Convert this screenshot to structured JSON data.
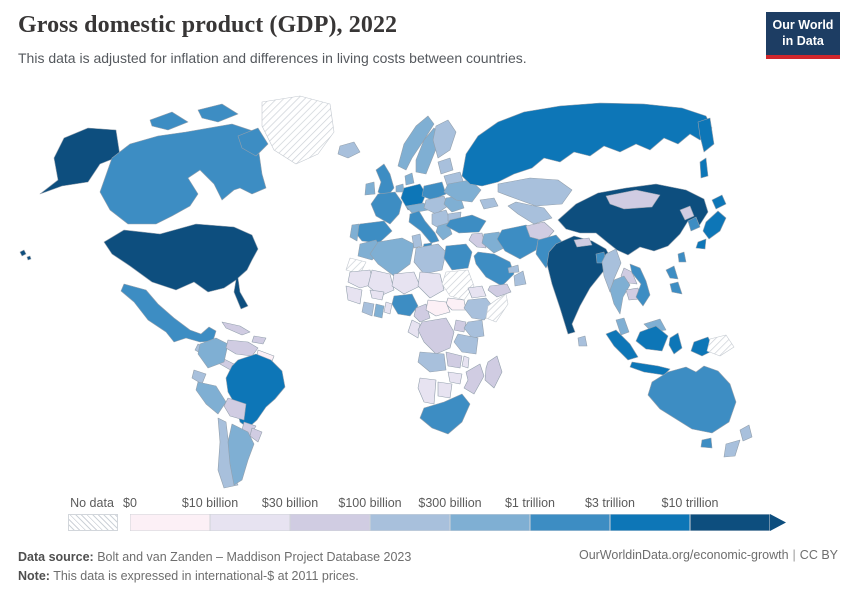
{
  "header": {
    "title": "Gross domestic product (GDP), 2022",
    "subtitle": "This data is adjusted for inflation and differences in living costs between countries.",
    "logo": {
      "line1": "Our World",
      "line2": "in Data",
      "bg_color": "#1d3d63",
      "accent_color": "#d0262c"
    }
  },
  "legend": {
    "no_data_label": "No data",
    "tick_labels": [
      "$0",
      "$10 billion",
      "$30 billion",
      "$100 billion",
      "$300 billion",
      "$1 trillion",
      "$3 trillion",
      "$10 trillion"
    ]
  },
  "footer": {
    "source_label": "Data source:",
    "source_text": "Bolt and van Zanden – Maddison Project Database 2023",
    "note_label": "Note:",
    "note_text": "This data is expressed in international-$ at 2011 prices.",
    "link": "OurWorldinData.org/economic-growth",
    "divider": "|",
    "license": "CC BY"
  },
  "chart_data": {
    "type": "choropleth",
    "title": "Gross domestic product (GDP), 2022",
    "unit": "international-$ at 2011 prices",
    "year": 2022,
    "bin_edge_labels": [
      "$0",
      "$10 billion",
      "$30 billion",
      "$100 billion",
      "$300 billion",
      "$1 trillion",
      "$3 trillion",
      "$10 trillion"
    ],
    "bin_range_labels": [
      "$0–$10 billion",
      "$10–$30 billion",
      "$30–$100 billion",
      "$100–$300 billion",
      "$300 billion–$1 trillion",
      "$1–$3 trillion",
      "$3–$10 trillion",
      "$10+ trillion"
    ],
    "bin_colors": [
      "#fcf0f6",
      "#e7e3f1",
      "#d0cce2",
      "#a8c0dc",
      "#7fafd3",
      "#3d8dc3",
      "#0d76b7",
      "#0d4e7e"
    ],
    "no_data_regions": [
      "greenland",
      "sudan",
      "somalia",
      "western-sahara",
      "papua-new-guinea"
    ],
    "regions": {
      "united-states": 7,
      "china": 7,
      "india": 7,
      "russia": 6,
      "japan": 6,
      "germany": 6,
      "brazil": 6,
      "indonesia": 6,
      "canada": 5,
      "mexico": 5,
      "france": 5,
      "united-kingdom": 5,
      "spain": 5,
      "italy": 5,
      "poland": 5,
      "turkey": 5,
      "egypt": 5,
      "saudi-arabia": 5,
      "iran": 5,
      "south-korea": 5,
      "australia": 5,
      "taiwan": 5,
      "nigeria": 5,
      "pakistan": 5,
      "bangladesh": 5,
      "vietnam": 5,
      "philippines": 5,
      "south-africa": 5,
      "argentina": 4,
      "colombia": 4,
      "peru": 4,
      "norway": 4,
      "sweden": 4,
      "denmark": 4,
      "ireland": 4,
      "portugal": 4,
      "greece": 4,
      "romania": 4,
      "ukraine": 4,
      "algeria": 4,
      "morocco": 4,
      "ghana": 4,
      "iraq": 4,
      "malaysia": 4,
      "thailand": 4,
      "benelux": 4,
      "alpine": 4,
      "finland": 3,
      "iceland": 3,
      "kazakhstan": 3,
      "new-zealand": 3,
      "libya": 3,
      "tunisia": 3,
      "ethiopia": 3,
      "kenya": 3,
      "tanzania": 3,
      "angola": 3,
      "cote-divoire": 3,
      "sri-lanka": 3,
      "myanmar": 3,
      "chile": 3,
      "baltics": 3,
      "belarus": 3,
      "caucasus": 3,
      "central-asia": 3,
      "oman": 3,
      "gulf-states": 3,
      "ecuador": 3,
      "guatemala": 3,
      "czech-hungary": 3,
      "balkans": 3,
      "bulgaria": 3,
      "bolivia": 2,
      "venezuela": 2,
      "cuba": 2,
      "hispaniola": 2,
      "central-america": 2,
      "paraguay": 2,
      "uruguay": 2,
      "mongolia": 2,
      "north-korea": 2,
      "laos": 2,
      "cambodia": 2,
      "nepal": 2,
      "afghanistan": 2,
      "yemen": 2,
      "cameroon": 2,
      "drc": 2,
      "zambia": 2,
      "mozambique": 2,
      "madagascar": 2,
      "uganda": 2,
      "levant": 2,
      "mauritania": 1,
      "mali": 1,
      "niger": 1,
      "chad": 1,
      "senegal-guinea": 1,
      "burkina": 1,
      "togo-benin": 1,
      "eritrea": 1,
      "congo-gabon": 1,
      "zimbabwe": 1,
      "botswana": 1,
      "namibia": 1,
      "malawi": 1,
      "central-african-republic": 0,
      "south-sudan": 0,
      "guyanas": 0,
      "greenland": "nodata",
      "sudan": "nodata",
      "somalia": "nodata",
      "western-sahara": "nodata",
      "papua-new-guinea": "nodata"
    }
  }
}
